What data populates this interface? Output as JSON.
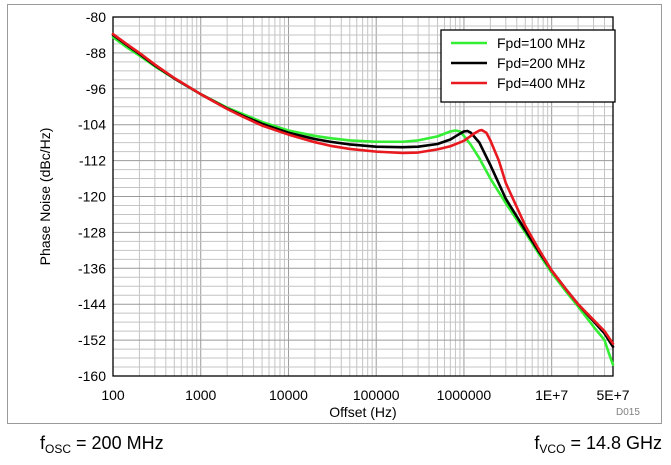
{
  "chart_data": {
    "type": "line",
    "xscale": "log",
    "title": "",
    "xlabel": "Offset (Hz)",
    "ylabel": "Phase Noise (dBc/Hz)",
    "xlim": [
      100,
      50000000
    ],
    "ylim": [
      -160,
      -80
    ],
    "grid": true,
    "legend_position": "top-right",
    "x_ticks": [
      {
        "value": 100,
        "label": "100"
      },
      {
        "value": 1000,
        "label": "1000"
      },
      {
        "value": 10000,
        "label": "10000"
      },
      {
        "value": 100000,
        "label": "100000"
      },
      {
        "value": 1000000,
        "label": "1000000"
      },
      {
        "value": 10000000,
        "label": "1E+7"
      },
      {
        "value": 50000000,
        "label": "5E+7"
      }
    ],
    "y_ticks": [
      -80,
      -88,
      -96,
      -104,
      -112,
      -120,
      -128,
      -136,
      -144,
      -152,
      -160
    ],
    "series": [
      {
        "name": "Fpd=100 MHz",
        "color": "#33ee33",
        "points": [
          [
            100,
            -84.5
          ],
          [
            150,
            -87
          ],
          [
            200,
            -88.6
          ],
          [
            300,
            -91
          ],
          [
            500,
            -93.7
          ],
          [
            1000,
            -97.2
          ],
          [
            2000,
            -100.2
          ],
          [
            3000,
            -101.6
          ],
          [
            5000,
            -103.4
          ],
          [
            10000,
            -105.3
          ],
          [
            20000,
            -106.5
          ],
          [
            30000,
            -107
          ],
          [
            50000,
            -107.5
          ],
          [
            100000,
            -107.8
          ],
          [
            200000,
            -107.8
          ],
          [
            300000,
            -107.5
          ],
          [
            500000,
            -106.6
          ],
          [
            700000,
            -105.5
          ],
          [
            800000,
            -105.3
          ],
          [
            900000,
            -105.5
          ],
          [
            1000000,
            -106.5
          ],
          [
            1200000,
            -108.5
          ],
          [
            1500000,
            -111.5
          ],
          [
            2000000,
            -116
          ],
          [
            3000000,
            -121.5
          ],
          [
            5000000,
            -128
          ],
          [
            7000000,
            -132.5
          ],
          [
            10000000,
            -137
          ],
          [
            15000000,
            -141.5
          ],
          [
            20000000,
            -144.5
          ],
          [
            30000000,
            -149
          ],
          [
            40000000,
            -152
          ],
          [
            45000000,
            -155
          ],
          [
            50000000,
            -157.5
          ]
        ]
      },
      {
        "name": "Fpd=200 MHz",
        "color": "#000000",
        "points": [
          [
            100,
            -84
          ],
          [
            150,
            -86.5
          ],
          [
            200,
            -88.2
          ],
          [
            300,
            -90.8
          ],
          [
            500,
            -93.7
          ],
          [
            1000,
            -97.2
          ],
          [
            2000,
            -100.4
          ],
          [
            3000,
            -102
          ],
          [
            5000,
            -103.8
          ],
          [
            10000,
            -105.8
          ],
          [
            20000,
            -107.2
          ],
          [
            30000,
            -107.8
          ],
          [
            50000,
            -108.4
          ],
          [
            100000,
            -108.9
          ],
          [
            200000,
            -109
          ],
          [
            300000,
            -108.9
          ],
          [
            500000,
            -108.3
          ],
          [
            700000,
            -107.3
          ],
          [
            900000,
            -106
          ],
          [
            1000000,
            -105.5
          ],
          [
            1100000,
            -105.4
          ],
          [
            1200000,
            -105.8
          ],
          [
            1500000,
            -108
          ],
          [
            2000000,
            -113
          ],
          [
            3000000,
            -120.5
          ],
          [
            5000000,
            -127.5
          ],
          [
            7000000,
            -132
          ],
          [
            10000000,
            -136.5
          ],
          [
            15000000,
            -141
          ],
          [
            20000000,
            -144
          ],
          [
            30000000,
            -147.8
          ],
          [
            40000000,
            -150.5
          ],
          [
            50000000,
            -153.5
          ]
        ]
      },
      {
        "name": "Fpd=400 MHz",
        "color": "#e8191f",
        "points": [
          [
            100,
            -83.8
          ],
          [
            150,
            -86.3
          ],
          [
            200,
            -88
          ],
          [
            300,
            -90.6
          ],
          [
            500,
            -93.6
          ],
          [
            1000,
            -97.2
          ],
          [
            2000,
            -100.5
          ],
          [
            3000,
            -102.2
          ],
          [
            5000,
            -104.2
          ],
          [
            10000,
            -106.2
          ],
          [
            20000,
            -107.9
          ],
          [
            30000,
            -108.7
          ],
          [
            50000,
            -109.4
          ],
          [
            100000,
            -110
          ],
          [
            200000,
            -110.3
          ],
          [
            300000,
            -110.2
          ],
          [
            500000,
            -109.5
          ],
          [
            700000,
            -108.8
          ],
          [
            1000000,
            -107.6
          ],
          [
            1300000,
            -106
          ],
          [
            1500000,
            -105.3
          ],
          [
            1600000,
            -105.2
          ],
          [
            1800000,
            -105.8
          ],
          [
            2000000,
            -107.5
          ],
          [
            2500000,
            -112
          ],
          [
            3000000,
            -117
          ],
          [
            5000000,
            -126.5
          ],
          [
            7000000,
            -131.5
          ],
          [
            10000000,
            -136.5
          ],
          [
            15000000,
            -141
          ],
          [
            20000000,
            -144
          ],
          [
            30000000,
            -147.5
          ],
          [
            40000000,
            -150
          ],
          [
            50000000,
            -152.8
          ]
        ]
      }
    ]
  },
  "footer": {
    "left_prefix": "f",
    "left_sub": "OSC",
    "left_value": " = 200 MHz",
    "right_prefix": "f",
    "right_sub": "VCO",
    "right_value": " = 14.8 GHz"
  },
  "figure_id": "D015"
}
